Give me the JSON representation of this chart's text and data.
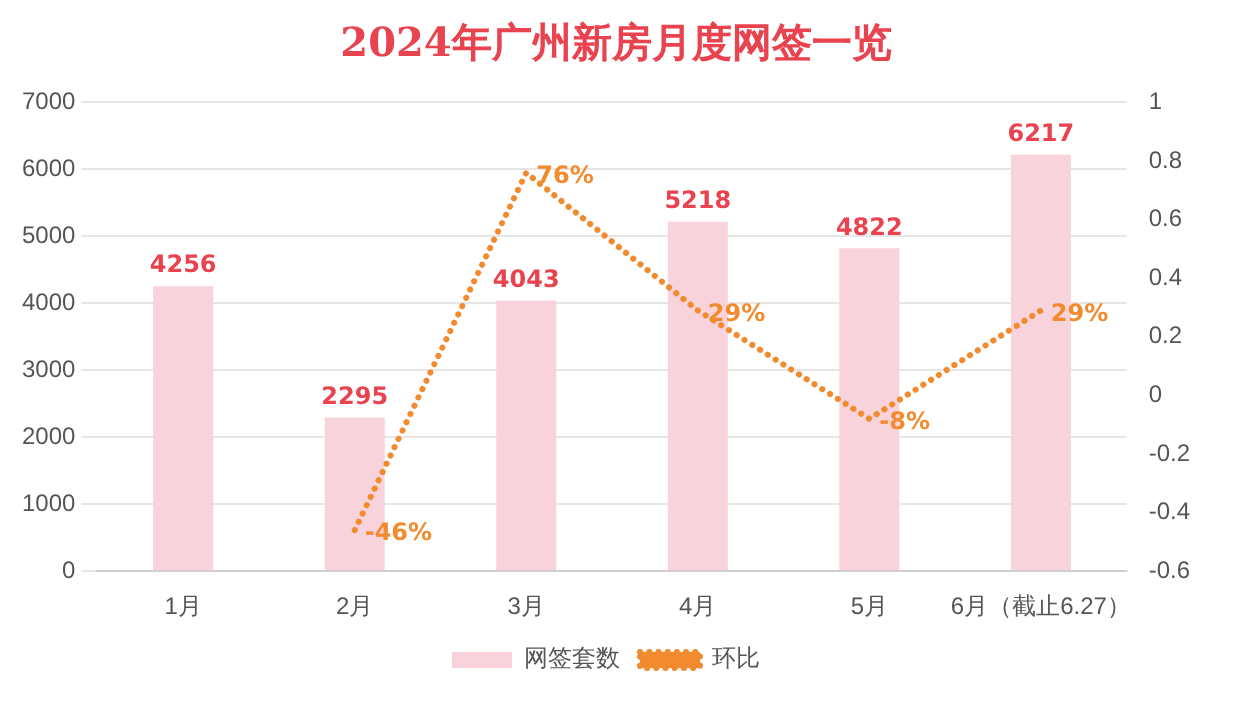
{
  "chart_data": {
    "type": "bar",
    "title": "2024年广州新房月度网签一览",
    "categories": [
      "1月",
      "2月",
      "3月",
      "4月",
      "5月",
      "6月（截止6.27）"
    ],
    "series": [
      {
        "name": "网签套数",
        "color": "#f9d3db",
        "values": [
          4256,
          2295,
          4043,
          5218,
          4822,
          6217
        ],
        "value_labels": [
          "4256",
          "2295",
          "4043",
          "5218",
          "4822",
          "6217"
        ]
      },
      {
        "name": "环比",
        "type": "line",
        "axis": "y2",
        "color": "#f28a2e",
        "line_style": "dotted",
        "marker": "none",
        "values": [
          null,
          -0.46,
          0.76,
          0.29,
          -0.08,
          0.29
        ],
        "value_labels": [
          null,
          "-46%",
          "76%",
          "29%",
          "-8%",
          "29%"
        ]
      }
    ],
    "ylim": [
      0,
      7000
    ],
    "yticks": [
      0,
      1000,
      2000,
      3000,
      4000,
      5000,
      6000,
      7000
    ],
    "y2lim": [
      -0.6,
      1
    ],
    "y2ticks": [
      -0.6,
      -0.4,
      -0.2,
      0,
      0.2,
      0.4,
      0.6,
      0.8,
      1
    ],
    "grid": "y",
    "legend": "bottom"
  }
}
